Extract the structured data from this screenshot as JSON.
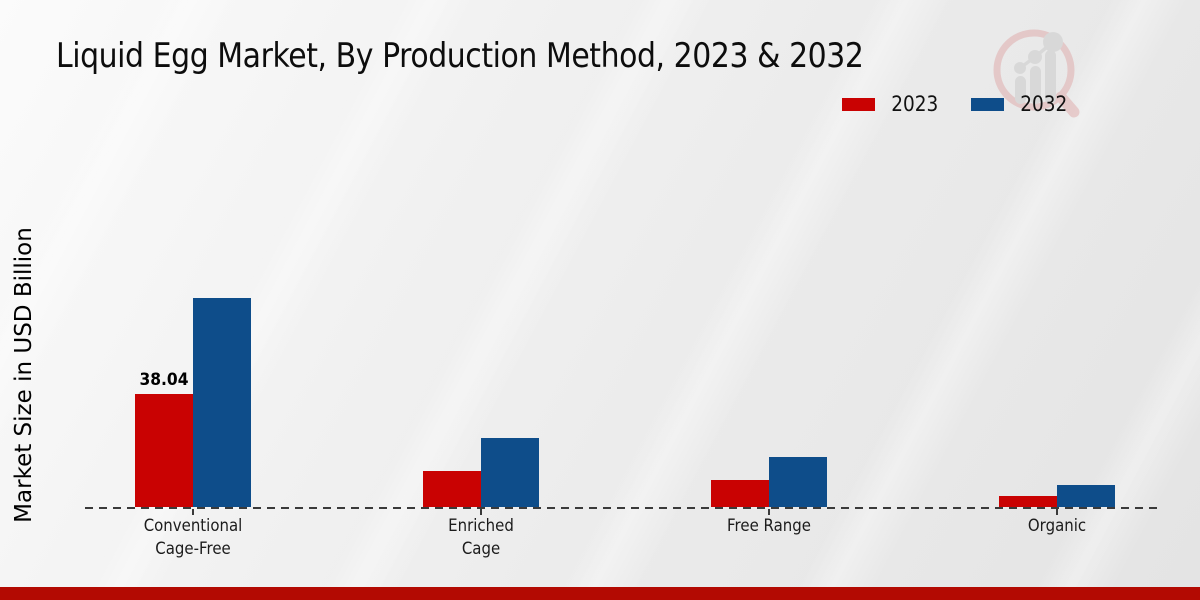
{
  "title": "Liquid Egg Market, By Production Method, 2023 & 2032",
  "ylabel": "Market Size in USD Billion",
  "legend": [
    {
      "label": "2023",
      "color": "#c90202"
    },
    {
      "label": "2032",
      "color": "#0e4d8a"
    }
  ],
  "chart_data": {
    "type": "bar",
    "title": "Liquid Egg Market, By Production Method, 2023 & 2032",
    "xlabel": "",
    "ylabel": "Market Size in USD Billion",
    "categories": [
      "Conventional Cage-Free",
      "Enriched Cage",
      "Free Range",
      "Organic"
    ],
    "category_display": [
      "Conventional\nCage-Free",
      "Enriched\nCage",
      "Free Range",
      "Organic"
    ],
    "series": [
      {
        "name": "2023",
        "color": "#c90202",
        "values": [
          38.04,
          12.0,
          9.2,
          3.6
        ]
      },
      {
        "name": "2032",
        "color": "#0e4d8a",
        "values": [
          70.3,
          23.2,
          16.7,
          7.5
        ]
      }
    ],
    "bar_labels": [
      {
        "series": "2023",
        "category_index": 0,
        "text": "38.04"
      }
    ],
    "ylim": [
      0,
      80
    ],
    "grid": false,
    "axis_style": "dashed-baseline-only",
    "legend_position": "top-right"
  },
  "colors": {
    "series_2023": "#c90202",
    "series_2032": "#0e4d8a",
    "footer_strip": "#b30a02",
    "axis_line": "#3a3a3a",
    "logo_ring": "#dfa9a9",
    "logo_gray": "#c9c9c9"
  },
  "icons": {
    "watermark": "magnifier-growth-chart-logo"
  }
}
